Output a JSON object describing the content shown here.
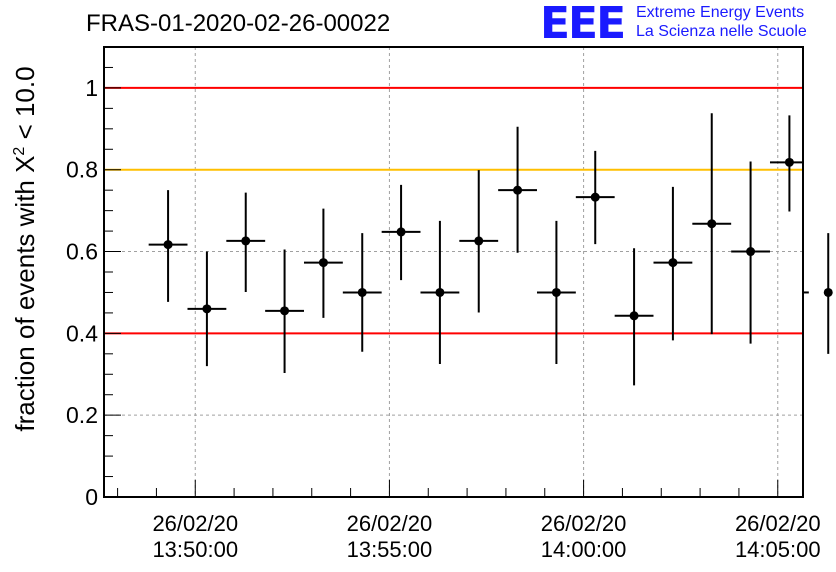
{
  "header": {
    "title": "FRAS-01-2020-02-26-00022",
    "logo_mark": "EEE",
    "logo_line1": "Extreme Energy Events",
    "logo_line2": "La Scienza nelle Scuole"
  },
  "colors": {
    "red_line": "#ff0000",
    "orange_line": "#ffbf00",
    "points": "#000000",
    "logo": "#1a1aff",
    "grid": "#a0a0a0"
  },
  "chart_data": {
    "type": "scatter",
    "ylabel_pre": "fraction of events with X",
    "ylabel_sup": "2",
    "ylabel_post": " < 10.0",
    "xlabel": "",
    "ylim": [
      0,
      1.1
    ],
    "xlim_minutes": [
      -2.35,
      15.65
    ],
    "y_ticks": [
      "0",
      "0.2",
      "0.4",
      "0.6",
      "0.8",
      "1"
    ],
    "y_tick_values": [
      0,
      0.2,
      0.4,
      0.6,
      0.8,
      1.0
    ],
    "x_ticks": [
      {
        "minute": 0,
        "date": "26/02/20",
        "time": "13:50:00"
      },
      {
        "minute": 5,
        "date": "26/02/20",
        "time": "13:55:00"
      },
      {
        "minute": 10,
        "date": "26/02/20",
        "time": "14:00:00"
      },
      {
        "minute": 15,
        "date": "26/02/20",
        "time": "14:05:00"
      }
    ],
    "grid": true,
    "reference_lines": [
      {
        "y": 1.0,
        "color": "red"
      },
      {
        "y": 0.8,
        "color": "orange"
      },
      {
        "y": 0.4,
        "color": "red"
      }
    ],
    "bin_width_minutes": 1.0,
    "points": [
      {
        "x_min": -0.7,
        "y": 0.617,
        "err_lo": 0.14,
        "err_hi": 0.133
      },
      {
        "x_min": 0.3,
        "y": 0.46,
        "err_lo": 0.14,
        "err_hi": 0.14
      },
      {
        "x_min": 1.3,
        "y": 0.626,
        "err_lo": 0.125,
        "err_hi": 0.118
      },
      {
        "x_min": 2.3,
        "y": 0.455,
        "err_lo": 0.152,
        "err_hi": 0.15
      },
      {
        "x_min": 3.3,
        "y": 0.573,
        "err_lo": 0.135,
        "err_hi": 0.132
      },
      {
        "x_min": 4.3,
        "y": 0.5,
        "err_lo": 0.145,
        "err_hi": 0.145
      },
      {
        "x_min": 5.3,
        "y": 0.648,
        "err_lo": 0.118,
        "err_hi": 0.115
      },
      {
        "x_min": 6.3,
        "y": 0.5,
        "err_lo": 0.175,
        "err_hi": 0.175
      },
      {
        "x_min": 7.3,
        "y": 0.626,
        "err_lo": 0.175,
        "err_hi": 0.173
      },
      {
        "x_min": 8.3,
        "y": 0.75,
        "err_lo": 0.153,
        "err_hi": 0.155
      },
      {
        "x_min": 9.3,
        "y": 0.5,
        "err_lo": 0.175,
        "err_hi": 0.175
      },
      {
        "x_min": 10.3,
        "y": 0.733,
        "err_lo": 0.115,
        "err_hi": 0.113
      },
      {
        "x_min": 11.3,
        "y": 0.443,
        "err_lo": 0.17,
        "err_hi": 0.165
      },
      {
        "x_min": 12.3,
        "y": 0.573,
        "err_lo": 0.19,
        "err_hi": 0.185
      },
      {
        "x_min": 13.3,
        "y": 0.668,
        "err_lo": 0.27,
        "err_hi": 0.27
      },
      {
        "x_min": 14.3,
        "y": 0.6,
        "err_lo": 0.225,
        "err_hi": 0.22
      },
      {
        "x_min": 15.3,
        "y": 0.818,
        "err_lo": 0.12,
        "err_hi": 0.115
      },
      {
        "x_min": 16.3,
        "y": 0.5,
        "err_lo": 0.15,
        "err_hi": 0.145
      }
    ]
  }
}
